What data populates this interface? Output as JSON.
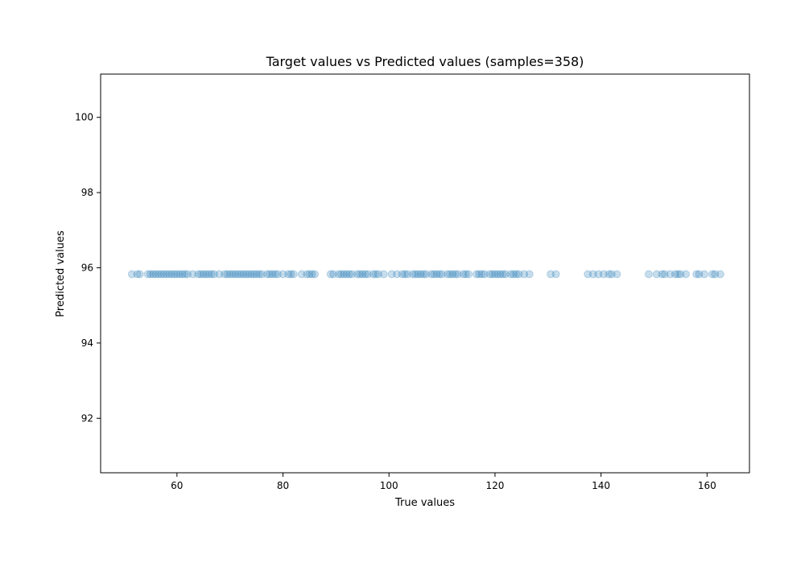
{
  "chart_data": {
    "type": "scatter",
    "title": "Target values vs Predicted values (samples=358)",
    "xlabel": "True values",
    "ylabel": "Predicted values",
    "xlim": [
      45.6,
      168.0
    ],
    "ylim": [
      90.55,
      101.15
    ],
    "xticks": [
      60,
      80,
      100,
      120,
      140,
      160
    ],
    "yticks": [
      92,
      94,
      96,
      98,
      100
    ],
    "predicted_constant": 95.83,
    "marker_color": "#1f77b4",
    "marker_alpha": 0.25,
    "grid": false,
    "legend": "none",
    "series": [
      {
        "x": [
          51.5,
          52.5,
          53.0,
          54.5,
          55.0,
          55.5,
          56.0,
          56.5,
          57.0,
          57.5,
          58.0,
          58.5,
          59.0,
          59.5,
          60.0,
          60.5,
          61.0,
          61.5,
          62.0,
          63.0,
          64.0,
          64.5,
          65.0,
          65.5,
          66.0,
          66.5,
          67.0,
          68.0,
          69.0,
          69.5,
          70.0,
          70.5,
          71.0,
          71.5,
          72.0,
          72.5,
          73.0,
          73.5,
          74.0,
          74.5,
          75.0,
          75.5,
          76.0,
          77.0,
          77.5,
          78.0,
          78.5,
          79.0,
          80.0,
          81.0,
          81.5,
          82.0,
          83.5,
          84.5,
          85.0,
          85.5,
          86.0,
          89.0,
          89.5,
          90.5,
          91.0,
          91.5,
          92.0,
          92.5,
          93.0,
          94.0,
          94.5,
          95.0,
          95.5,
          96.0,
          97.0,
          97.5,
          98.0,
          99.0,
          100.5,
          101.5,
          102.5,
          103.0,
          103.5,
          104.5,
          105.0,
          105.5,
          106.0,
          106.5,
          107.0,
          108.0,
          108.5,
          109.0,
          109.5,
          110.0,
          111.0,
          111.5,
          112.0,
          112.5,
          113.0,
          114.0,
          114.5,
          115.0,
          116.5,
          117.0,
          117.5,
          118.0,
          119.0,
          119.5,
          120.0,
          120.5,
          121.0,
          121.5,
          122.0,
          123.0,
          123.5,
          124.0,
          124.5,
          125.5,
          126.5,
          130.5,
          131.5,
          137.5,
          138.5,
          139.5,
          140.5,
          141.5,
          142.0,
          143.0,
          149.0,
          150.5,
          151.5,
          152.0,
          153.0,
          154.0,
          154.5,
          155.0,
          156.0,
          158.0,
          158.5,
          159.5,
          161.0,
          161.5,
          162.5
        ],
        "y": [
          95.83,
          95.83,
          95.83,
          95.83,
          95.83,
          95.83,
          95.83,
          95.83,
          95.83,
          95.83,
          95.83,
          95.83,
          95.83,
          95.83,
          95.83,
          95.83,
          95.83,
          95.83,
          95.83,
          95.83,
          95.83,
          95.83,
          95.83,
          95.83,
          95.83,
          95.83,
          95.83,
          95.83,
          95.83,
          95.83,
          95.83,
          95.83,
          95.83,
          95.83,
          95.83,
          95.83,
          95.83,
          95.83,
          95.83,
          95.83,
          95.83,
          95.83,
          95.83,
          95.83,
          95.83,
          95.83,
          95.83,
          95.83,
          95.83,
          95.83,
          95.83,
          95.83,
          95.83,
          95.83,
          95.83,
          95.83,
          95.83,
          95.83,
          95.83,
          95.83,
          95.83,
          95.83,
          95.83,
          95.83,
          95.83,
          95.83,
          95.83,
          95.83,
          95.83,
          95.83,
          95.83,
          95.83,
          95.83,
          95.83,
          95.83,
          95.83,
          95.83,
          95.83,
          95.83,
          95.83,
          95.83,
          95.83,
          95.83,
          95.83,
          95.83,
          95.83,
          95.83,
          95.83,
          95.83,
          95.83,
          95.83,
          95.83,
          95.83,
          95.83,
          95.83,
          95.83,
          95.83,
          95.83,
          95.83,
          95.83,
          95.83,
          95.83,
          95.83,
          95.83,
          95.83,
          95.83,
          95.83,
          95.83,
          95.83,
          95.83,
          95.83,
          95.83,
          95.83,
          95.83,
          95.83,
          95.83,
          95.83,
          95.83,
          95.83,
          95.83,
          95.83,
          95.83,
          95.83,
          95.83,
          95.83,
          95.83,
          95.83,
          95.83,
          95.83,
          95.83,
          95.83,
          95.83,
          95.83,
          95.83,
          95.83,
          95.83,
          95.83,
          95.83,
          95.83
        ]
      }
    ]
  }
}
